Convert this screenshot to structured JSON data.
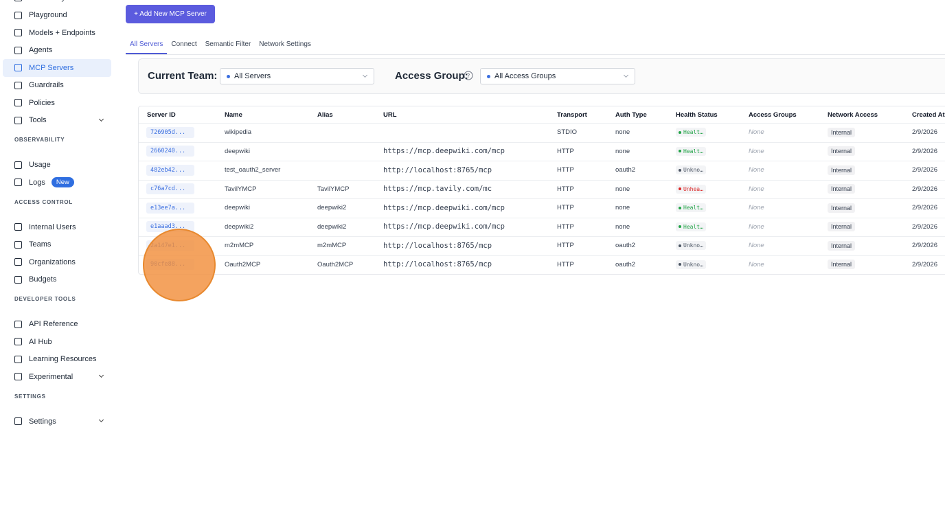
{
  "sidebar": {
    "items": [
      {
        "label": "Virtual Keys"
      },
      {
        "label": "Playground"
      },
      {
        "label": "Models + Endpoints"
      },
      {
        "label": "Agents"
      },
      {
        "label": "MCP Servers",
        "active": true
      },
      {
        "label": "Guardrails"
      },
      {
        "label": "Policies"
      },
      {
        "label": "Tools",
        "expandable": true
      }
    ],
    "groups": [
      {
        "heading": "OBSERVABILITY",
        "items": [
          {
            "label": "Usage"
          },
          {
            "label": "Logs",
            "badge": "New"
          }
        ]
      },
      {
        "heading": "ACCESS CONTROL",
        "items": [
          {
            "label": "Internal Users"
          },
          {
            "label": "Teams"
          },
          {
            "label": "Organizations"
          },
          {
            "label": "Budgets"
          }
        ]
      },
      {
        "heading": "DEVELOPER TOOLS",
        "items": [
          {
            "label": "API Reference"
          },
          {
            "label": "AI Hub"
          },
          {
            "label": "Learning Resources"
          },
          {
            "label": "Experimental",
            "expandable": true
          }
        ]
      },
      {
        "heading": "SETTINGS",
        "items": [
          {
            "label": "Settings",
            "expandable": true
          }
        ]
      }
    ]
  },
  "add_button": "+ Add New MCP Server",
  "tabs": {
    "labels": [
      "All Servers",
      "Connect",
      "Semantic Filter",
      "Network Settings"
    ],
    "active": 0
  },
  "filters": {
    "team_label": "Current Team:",
    "team_value": "All Servers",
    "group_label": "Access Group:",
    "group_value": "All Access Groups"
  },
  "table": {
    "columns": [
      "Server ID",
      "Name",
      "Alias",
      "URL",
      "Transport",
      "Auth Type",
      "Health Status",
      "Access Groups",
      "Network Access",
      "Created At"
    ],
    "rows": [
      {
        "id": "726905d...",
        "name": "wikipedia",
        "alias": null,
        "url": null,
        "transport": "STDIO",
        "auth": "none",
        "health": "Healt…",
        "health_color": "#22a447",
        "access": "None",
        "network": "Internal",
        "created": "2/9/2026"
      },
      {
        "id": "2660240...",
        "name": "deepwiki",
        "alias": null,
        "url": "https://mcp.deepwiki.com/mcp",
        "transport": "HTTP",
        "auth": "none",
        "health": "Healt…",
        "health_color": "#22a447",
        "access": "None",
        "network": "Internal",
        "created": "2/9/2026"
      },
      {
        "id": "482eb42...",
        "name": "test_oauth2_server",
        "alias": null,
        "url": "http://localhost:8765/mcp",
        "transport": "HTTP",
        "auth": "oauth2",
        "health": "Unkno…",
        "health_color": "#4b5563",
        "access": "None",
        "network": "Internal",
        "created": "2/9/2026"
      },
      {
        "id": "c76a7cd...",
        "name": "TavilYMCP",
        "alias": "TavilYMCP",
        "url": "https://mcp.tavily.com/mc",
        "transport": "HTTP",
        "auth": "none",
        "health": "Unhea…",
        "health_color": "#dc2626",
        "access": "None",
        "network": "Internal",
        "created": "2/9/2026"
      },
      {
        "id": "e13ee7a...",
        "name": "deepwiki",
        "alias": "deepwiki2",
        "url": "https://mcp.deepwiki.com/mcp",
        "transport": "HTTP",
        "auth": "none",
        "health": "Healt…",
        "health_color": "#22a447",
        "access": "None",
        "network": "Internal",
        "created": "2/9/2026"
      },
      {
        "id": "e1aaad3...",
        "name": "deepwiki2",
        "alias": "deepwiki2",
        "url": "https://mcp.deepwiki.com/mcp",
        "transport": "HTTP",
        "auth": "none",
        "health": "Healt…",
        "health_color": "#22a447",
        "access": "None",
        "network": "Internal",
        "created": "2/9/2026"
      },
      {
        "id": "2a147e1...",
        "name": "m2mMCP",
        "alias": "m2mMCP",
        "url": "http://localhost:8765/mcp",
        "transport": "HTTP",
        "auth": "oauth2",
        "health": "Unkno…",
        "health_color": "#4b5563",
        "access": "None",
        "network": "Internal",
        "created": "2/9/2026"
      },
      {
        "id": "90cfe88...",
        "name": "Oauth2MCP",
        "alias": "Oauth2MCP",
        "url": "http://localhost:8765/mcp",
        "transport": "HTTP",
        "auth": "oauth2",
        "health": "Unkno…",
        "health_color": "#4b5563",
        "access": "None",
        "network": "Internal",
        "created": "2/9/2026"
      }
    ]
  }
}
